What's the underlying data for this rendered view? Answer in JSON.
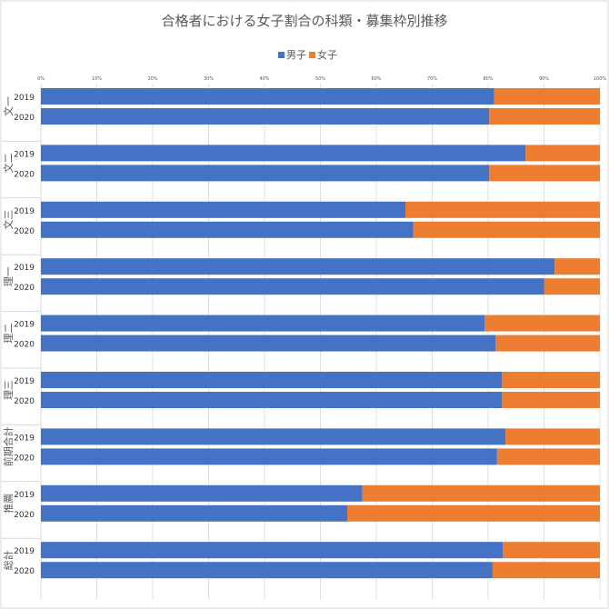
{
  "chart_data": {
    "type": "bar",
    "orientation": "horizontal",
    "stacked": "percent",
    "title": "合格者における女子割合の科類・募集枠別推移",
    "legend": {
      "position": "top",
      "entries": [
        "男子",
        "女子"
      ]
    },
    "x_ticks": [
      "0%",
      "10%",
      "20%",
      "30%",
      "40%",
      "50%",
      "60%",
      "70%",
      "80%",
      "90%",
      "100%"
    ],
    "xlim": [
      0,
      100
    ],
    "groups": [
      {
        "name": "文一",
        "rows": [
          {
            "year": "2019",
            "male": 81.1,
            "female": 18.9
          },
          {
            "year": "2020",
            "male": 80.2,
            "female": 19.8
          }
        ]
      },
      {
        "name": "文二",
        "rows": [
          {
            "year": "2019",
            "male": 86.7,
            "female": 13.3
          },
          {
            "year": "2020",
            "male": 80.2,
            "female": 19.8
          }
        ]
      },
      {
        "name": "文三",
        "rows": [
          {
            "year": "2019",
            "male": 65.2,
            "female": 34.8
          },
          {
            "year": "2020",
            "male": 66.6,
            "female": 33.4
          }
        ]
      },
      {
        "name": "理一",
        "rows": [
          {
            "year": "2019",
            "male": 91.9,
            "female": 8.1
          },
          {
            "year": "2020",
            "male": 90.0,
            "female": 10.0
          }
        ]
      },
      {
        "name": "理二",
        "rows": [
          {
            "year": "2019",
            "male": 79.4,
            "female": 20.6
          },
          {
            "year": "2020",
            "male": 81.3,
            "female": 18.7
          }
        ]
      },
      {
        "name": "理三",
        "rows": [
          {
            "year": "2019",
            "male": 82.5,
            "female": 17.5
          },
          {
            "year": "2020",
            "male": 82.5,
            "female": 17.5
          }
        ]
      },
      {
        "name": "前期合計",
        "rows": [
          {
            "year": "2019",
            "male": 83.1,
            "female": 16.9
          },
          {
            "year": "2020",
            "male": 81.6,
            "female": 18.4
          }
        ]
      },
      {
        "name": "推薦",
        "rows": [
          {
            "year": "2019",
            "male": 57.5,
            "female": 42.5
          },
          {
            "year": "2020",
            "male": 54.8,
            "female": 45.2
          }
        ]
      },
      {
        "name": "総計",
        "rows": [
          {
            "year": "2019",
            "male": 82.6,
            "female": 17.4
          },
          {
            "year": "2020",
            "male": 80.8,
            "female": 19.2
          }
        ]
      }
    ],
    "colors": {
      "male": "#4472C4",
      "female": "#ED7D31",
      "grid": "#D9D9D9",
      "text": "#595959"
    },
    "grid": true
  }
}
